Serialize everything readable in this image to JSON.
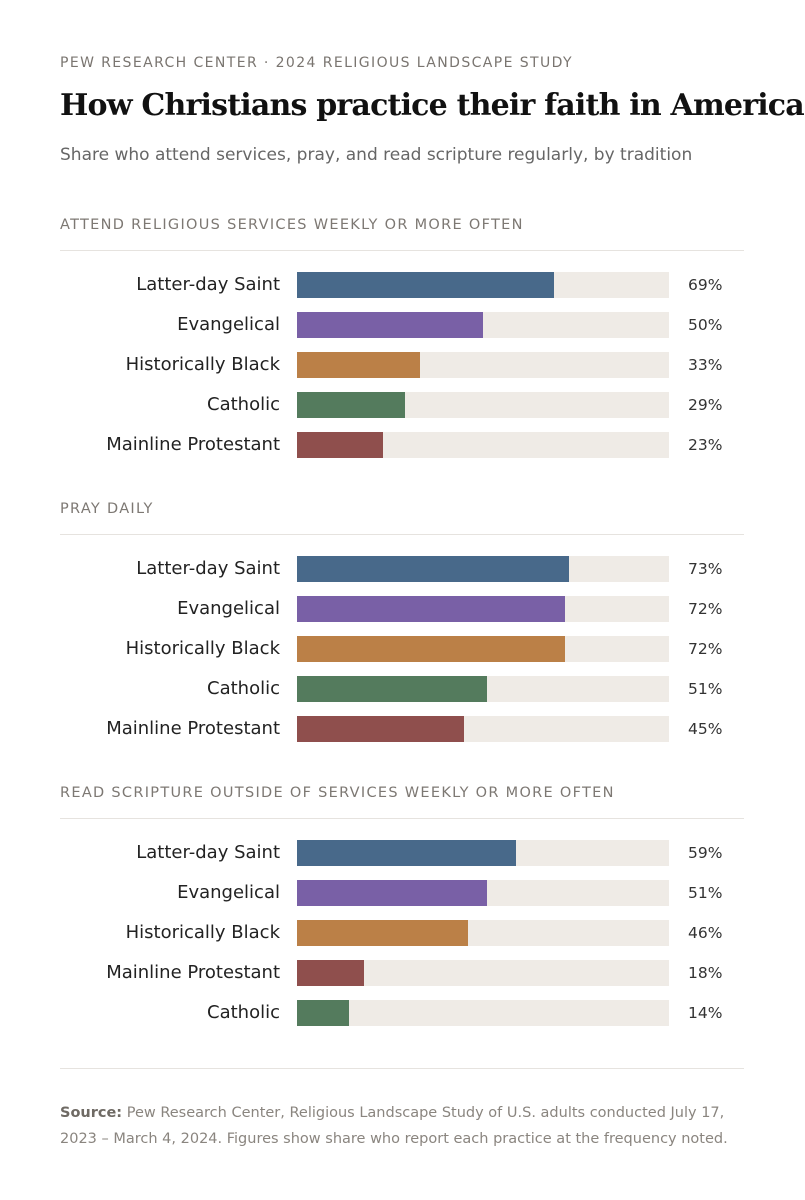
{
  "header": {
    "kicker": "PEW RESEARCH CENTER · 2024 RELIGIOUS LANDSCAPE STUDY",
    "title": "How Christians practice their faith in America",
    "subtitle": "Share who attend services, pray, and read scripture regularly, by tradition"
  },
  "colors": {
    "Latter-day Saint": "#48698a",
    "Evangelical": "#7960a6",
    "Historically Black": "#bb8047",
    "Catholic": "#547b5d",
    "Mainline Protestant": "#8f4f4d",
    "track": "#efebe6"
  },
  "chart_data": {
    "type": "bar",
    "orientation": "horizontal",
    "unit": "%",
    "xlim": [
      0,
      100
    ],
    "panels": [
      {
        "title": "ATTEND RELIGIOUS SERVICES WEEKLY OR MORE OFTEN",
        "categories": [
          "Latter-day Saint",
          "Evangelical",
          "Historically Black",
          "Catholic",
          "Mainline Protestant"
        ],
        "values": [
          69,
          50,
          33,
          29,
          23
        ],
        "labels": [
          "69%",
          "50%",
          "33%",
          "29%",
          "23%"
        ]
      },
      {
        "title": "PRAY DAILY",
        "categories": [
          "Latter-day Saint",
          "Evangelical",
          "Historically Black",
          "Catholic",
          "Mainline Protestant"
        ],
        "values": [
          73,
          72,
          72,
          51,
          45
        ],
        "labels": [
          "73%",
          "72%",
          "72%",
          "51%",
          "45%"
        ]
      },
      {
        "title": "READ SCRIPTURE OUTSIDE OF SERVICES WEEKLY OR MORE OFTEN",
        "categories": [
          "Latter-day Saint",
          "Evangelical",
          "Historically Black",
          "Mainline Protestant",
          "Catholic"
        ],
        "values": [
          59,
          51,
          46,
          18,
          14
        ],
        "labels": [
          "59%",
          "51%",
          "46%",
          "18%",
          "14%"
        ]
      }
    ]
  },
  "footer": {
    "source_label": "Source:",
    "source_text": " Pew Research Center, Religious Landscape Study of U.S. adults conducted July 17, 2023 – March 4, 2024. Figures show share who report each practice at the frequency noted."
  }
}
